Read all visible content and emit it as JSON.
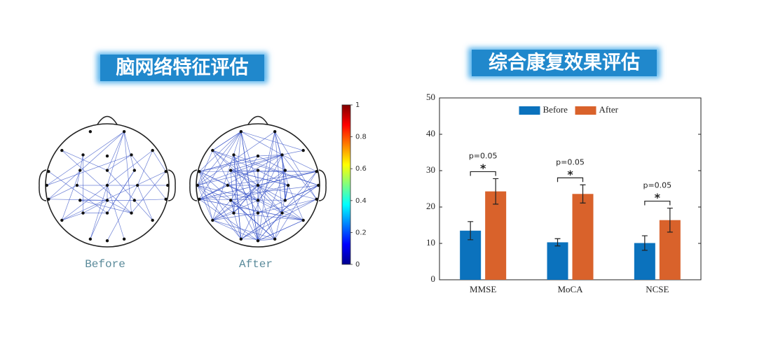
{
  "chart_data": [
    {
      "type": "network",
      "title": "脑网络特征评估",
      "panel_labels": [
        "Before",
        "After"
      ],
      "ylim": [
        0,
        1
      ],
      "yticks": [
        0,
        0.2,
        0.4,
        0.6,
        0.8,
        1
      ]
    },
    {
      "type": "bar",
      "title": "综合康复效果评估",
      "categories": [
        "MMSE",
        "MoCA",
        "NCSE"
      ],
      "series": [
        {
          "name": "Before",
          "color": "#0b72bd",
          "values": [
            13.5,
            10.3,
            10.1
          ],
          "errors": [
            2.5,
            1.0,
            2.0
          ]
        },
        {
          "name": "After",
          "color": "#d9622b",
          "values": [
            24.3,
            23.6,
            16.4
          ],
          "errors": [
            3.5,
            2.5,
            3.3
          ]
        }
      ],
      "annotations": [
        "p=0.05",
        "p=0.05",
        "p=0.05"
      ],
      "significance": [
        "*",
        "*",
        "*"
      ],
      "ylim": [
        0,
        50
      ],
      "yticks": [
        0,
        10,
        20,
        30,
        40,
        50
      ],
      "legend": "upper center"
    }
  ]
}
